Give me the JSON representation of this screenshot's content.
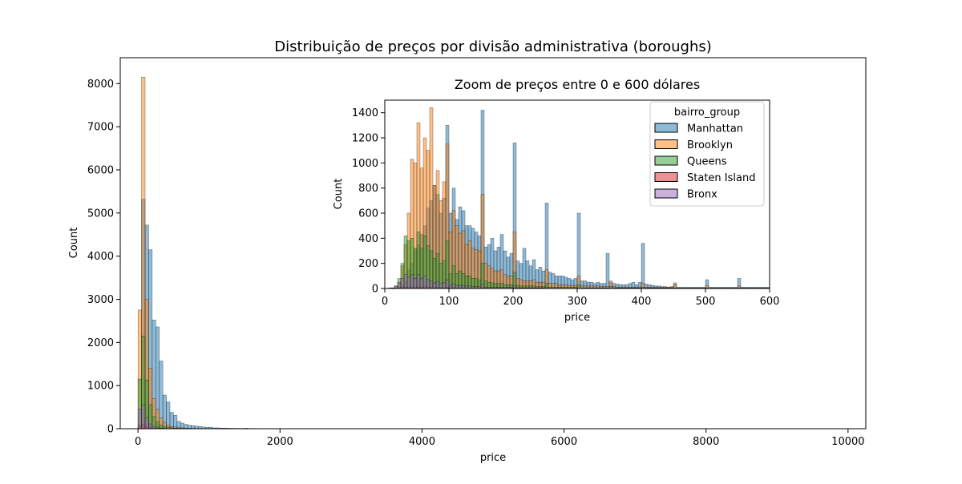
{
  "chart_data": [
    {
      "type": "histogram",
      "title": "Distribuição de preços por divisão administrativa (boroughs)",
      "xlabel": "price",
      "ylabel": "Count",
      "xlim": [
        -250,
        10250
      ],
      "ylim": [
        0,
        8600
      ],
      "xticks": [
        "0",
        "2000",
        "4000",
        "6000",
        "8000",
        "10000"
      ],
      "xtick_values": [
        0,
        2000,
        4000,
        6000,
        8000,
        10000
      ],
      "yticks": [
        "0",
        "1000",
        "2000",
        "3000",
        "4000",
        "5000",
        "6000",
        "7000",
        "8000"
      ],
      "ytick_values": [
        0,
        1000,
        2000,
        3000,
        4000,
        5000,
        6000,
        7000,
        8000
      ],
      "bin_width": 50,
      "series": [
        {
          "name": "Manhattan",
          "color": "#1f77b4",
          "bins_start": 0,
          "counts": [
            80,
            5320,
            4720,
            4150,
            2520,
            2360,
            1570,
            780,
            620,
            380,
            310,
            170,
            130,
            100,
            80,
            70,
            60,
            50,
            40,
            30,
            35,
            20,
            20,
            15,
            15,
            12,
            10,
            10,
            8,
            8,
            12,
            6,
            6,
            5,
            5,
            5,
            4,
            4,
            4,
            3
          ]
        },
        {
          "name": "Brooklyn",
          "color": "#ff7f0e",
          "bins_start": 0,
          "counts": [
            2750,
            8150,
            3000,
            1400,
            700,
            450,
            250,
            150,
            80,
            50,
            40,
            25,
            20,
            15,
            10,
            8
          ]
        },
        {
          "name": "Queens",
          "color": "#2ca02c",
          "bins_start": 0,
          "counts": [
            1150,
            2150,
            1130,
            560,
            280,
            160,
            90,
            50,
            30,
            20,
            15,
            10,
            8,
            5
          ]
        },
        {
          "name": "Staten Island",
          "color": "#d62728",
          "bins_start": 0,
          "counts": [
            60,
            110,
            60,
            30,
            15,
            8,
            5
          ]
        },
        {
          "name": "Bronx",
          "color": "#9467bd",
          "bins_start": 0,
          "counts": [
            450,
            560,
            250,
            110,
            50,
            25,
            15,
            8,
            5
          ]
        }
      ]
    },
    {
      "type": "histogram",
      "title": "Zoom de preços entre 0 e 600 dólares",
      "xlabel": "price",
      "ylabel": "Count",
      "xlim": [
        0,
        600
      ],
      "ylim": [
        0,
        1500
      ],
      "xticks": [
        "0",
        "100",
        "200",
        "300",
        "400",
        "500",
        "600"
      ],
      "xtick_values": [
        0,
        100,
        200,
        300,
        400,
        500,
        600
      ],
      "yticks": [
        "0",
        "200",
        "400",
        "600",
        "800",
        "1000",
        "1200",
        "1400"
      ],
      "ytick_values": [
        0,
        200,
        400,
        600,
        800,
        1000,
        1200,
        1400
      ],
      "bin_width": 5,
      "legend_title": "bairro_group",
      "legend_position": "upper right",
      "series": [
        {
          "name": "Manhattan",
          "color": "#1f77b4",
          "bins_start": 0,
          "counts": [
            0,
            0,
            0,
            5,
            15,
            30,
            60,
            150,
            200,
            310,
            350,
            430,
            500,
            640,
            700,
            820,
            750,
            600,
            720,
            1300,
            600,
            800,
            550,
            650,
            620,
            500,
            500,
            480,
            450,
            420,
            1420,
            330,
            350,
            400,
            300,
            330,
            430,
            300,
            250,
            280,
            1160,
            220,
            200,
            320,
            220,
            180,
            230,
            150,
            170,
            140,
            680,
            130,
            120,
            100,
            100,
            100,
            90,
            80,
            70,
            80,
            600,
            60,
            60,
            50,
            50,
            40,
            50,
            40,
            40,
            280,
            50,
            40,
            35,
            30,
            30,
            30,
            40,
            50,
            30,
            50,
            360,
            35,
            30,
            25,
            20,
            20,
            15,
            15,
            10,
            15,
            45,
            10,
            10,
            10,
            10,
            10,
            10,
            10,
            10,
            10,
            70,
            10,
            10,
            10,
            10,
            10,
            10,
            10,
            10,
            10,
            80,
            10,
            10,
            10,
            10,
            10,
            10,
            10,
            10,
            10
          ]
        },
        {
          "name": "Brooklyn",
          "color": "#ff7f0e",
          "bins_start": 0,
          "counts": [
            0,
            5,
            5,
            20,
            50,
            180,
            350,
            600,
            1030,
            1000,
            1320,
            960,
            1200,
            1100,
            1440,
            820,
            940,
            700,
            850,
            1150,
            450,
            620,
            500,
            440,
            460,
            350,
            380,
            320,
            310,
            300,
            750,
            200,
            180,
            160,
            140,
            140,
            150,
            110,
            100,
            100,
            450,
            80,
            70,
            60,
            60,
            60,
            70,
            50,
            50,
            50,
            150,
            40,
            40,
            40,
            30,
            30,
            30,
            25,
            25,
            25,
            100,
            20,
            20,
            20,
            20,
            20,
            20,
            15,
            15,
            15,
            60,
            15,
            10,
            10,
            10,
            10,
            10,
            10,
            10,
            10,
            40,
            10,
            10,
            10,
            10,
            10,
            10,
            10,
            10,
            10,
            30,
            5,
            5,
            5,
            5,
            5,
            5,
            5,
            5,
            5,
            25,
            5,
            5,
            5,
            5,
            5,
            5,
            5,
            5,
            5,
            20,
            5,
            5,
            5,
            5,
            5,
            5,
            5,
            5,
            5
          ]
        },
        {
          "name": "Queens",
          "color": "#2ca02c",
          "bins_start": 0,
          "counts": [
            0,
            0,
            5,
            20,
            80,
            200,
            420,
            380,
            400,
            320,
            450,
            320,
            420,
            340,
            300,
            240,
            280,
            200,
            220,
            380,
            120,
            180,
            120,
            140,
            120,
            100,
            100,
            80,
            80,
            70,
            200,
            60,
            50,
            45,
            40,
            40,
            40,
            30,
            30,
            30,
            130,
            25,
            20,
            20,
            20,
            20,
            20,
            15,
            15,
            15,
            40,
            10,
            10,
            10,
            10,
            10,
            10,
            10,
            10,
            10,
            30,
            5,
            5,
            5,
            5,
            5,
            5,
            5,
            5,
            5,
            15,
            5,
            5,
            5,
            5,
            5,
            5,
            5,
            5,
            5,
            10,
            5,
            5,
            5,
            5,
            5,
            5,
            5,
            5,
            5,
            5,
            0,
            0,
            0,
            0,
            0,
            0,
            0,
            0,
            0,
            5,
            0,
            0,
            0,
            0,
            0,
            0,
            0,
            0,
            0,
            5,
            0,
            0,
            0,
            0,
            0,
            0,
            0,
            0,
            0
          ]
        },
        {
          "name": "Staten Island",
          "color": "#d62728",
          "bins_start": 0,
          "counts": [
            0,
            0,
            0,
            2,
            4,
            8,
            12,
            10,
            14,
            10,
            14,
            10,
            14,
            10,
            12,
            6,
            8,
            6,
            6,
            10,
            4,
            6,
            4,
            4,
            4,
            3,
            3,
            3,
            3,
            3,
            6,
            2,
            2,
            2,
            2,
            2,
            2,
            2,
            2,
            2,
            4,
            1,
            1,
            1,
            1,
            1,
            1,
            1,
            1,
            1,
            2
          ]
        },
        {
          "name": "Bronx",
          "color": "#9467bd",
          "bins_start": 0,
          "counts": [
            0,
            0,
            5,
            20,
            45,
            80,
            110,
            90,
            110,
            80,
            110,
            80,
            100,
            70,
            60,
            45,
            55,
            40,
            45,
            70,
            25,
            35,
            25,
            25,
            25,
            20,
            20,
            15,
            15,
            15,
            35,
            10,
            10,
            10,
            10,
            10,
            10,
            8,
            8,
            8,
            20,
            5,
            5,
            5,
            5,
            5,
            5,
            5,
            5,
            5,
            10
          ]
        }
      ]
    }
  ]
}
